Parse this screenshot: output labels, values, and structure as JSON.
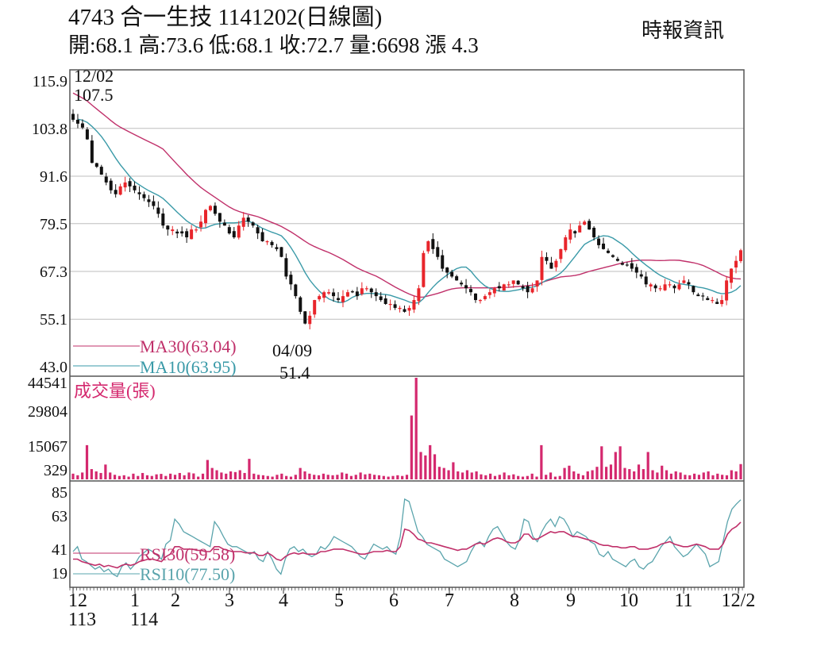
{
  "header": {
    "title": "4743  合一生技 1141202(日線圖)",
    "subtitle": "開:68.1 高:73.6 低:68.1 收:72.7 量:6698 漲 4.3",
    "brand": "時報資訊"
  },
  "colors": {
    "up": "#e8252b",
    "down": "#111111",
    "ma30": "#c0306a",
    "ma10": "#3a9aa8",
    "volume": "#d4286e",
    "rsi30": "#c0306a",
    "rsi10": "#5aa4ac",
    "grid": "#bdbdbd",
    "axis": "#555555"
  },
  "chart_data": [
    {
      "type": "candlestick",
      "title": "4743 合一生技 1141202(日線圖)",
      "panel": "price",
      "ylim": [
        43.0,
        115.9
      ],
      "yticks": [
        115.9,
        103.8,
        91.6,
        79.5,
        67.3,
        55.1,
        43.0
      ],
      "ohlc_last": {
        "open": 68.1,
        "high": 73.6,
        "low": 68.1,
        "close": 72.7,
        "volume": 6698,
        "change": 4.3
      },
      "annotations": [
        {
          "label": "12/02",
          "value": "107.5",
          "note": "period high"
        },
        {
          "label": "04/09",
          "value": "51.4",
          "note": "period low"
        }
      ],
      "series": [
        {
          "name": "MA30",
          "last": 63.04,
          "legend": "MA30(63.04)"
        },
        {
          "name": "MA10",
          "last": 63.95,
          "legend": "MA10(63.95)"
        }
      ],
      "close_path": [
        106,
        105,
        104,
        101,
        95,
        94,
        92,
        90,
        88,
        87,
        89,
        90,
        89,
        88,
        87,
        86,
        85,
        84,
        82,
        79,
        78,
        78,
        77,
        77,
        76,
        78,
        78,
        80,
        83,
        84,
        82,
        80,
        79,
        77,
        76,
        79,
        81,
        80,
        79,
        77,
        75,
        75,
        74,
        73,
        71,
        66,
        64,
        61,
        57,
        54,
        56,
        60,
        61,
        62,
        62,
        61,
        60,
        61,
        62,
        62,
        61,
        63,
        63,
        62,
        61,
        60,
        59,
        59,
        58,
        58,
        57,
        58,
        60,
        63,
        72,
        75,
        73,
        71,
        68,
        67,
        66,
        65,
        64,
        63,
        62,
        60,
        60,
        61,
        62,
        63,
        63,
        64,
        64,
        65,
        64,
        63,
        62,
        63,
        65,
        71,
        70,
        68,
        70,
        73,
        76,
        78,
        77,
        79,
        80,
        78,
        76,
        74,
        73,
        72,
        71,
        70,
        69,
        69,
        68,
        67,
        66,
        64,
        64,
        63,
        63,
        64,
        64,
        63,
        64,
        65,
        64,
        62,
        61,
        61,
        60,
        60,
        59,
        60,
        65,
        68,
        70,
        72.7
      ]
    },
    {
      "type": "bar",
      "panel": "volume",
      "title": "成交量(張)",
      "ylim": [
        0,
        44541
      ],
      "yticks": [
        44541,
        29804,
        15067,
        329
      ],
      "peak_value": 44541,
      "values": [
        2500,
        1800,
        3000,
        15000,
        4500,
        3500,
        2800,
        6500,
        3000,
        2000,
        1500,
        1800,
        1200,
        2500,
        1500,
        2800,
        1800,
        1500,
        2200,
        2400,
        1500,
        2500,
        2000,
        2800,
        1800,
        3000,
        2600,
        1200,
        2500,
        8500,
        5000,
        4000,
        3000,
        2500,
        3500,
        3200,
        4000,
        2800,
        9000,
        2500,
        2000,
        1800,
        1500,
        1200,
        2000,
        2500,
        1500,
        1200,
        2000,
        5000,
        3500,
        2500,
        2000,
        1800,
        2500,
        2000,
        1800,
        2000,
        3000,
        2500,
        1500,
        2000,
        3000,
        2200,
        2500,
        2000,
        1800,
        1500,
        1200,
        1500,
        1800,
        1500,
        2000,
        28000,
        44541,
        12000,
        10500,
        15000,
        11000,
        5500,
        5000,
        4000,
        7500,
        3500,
        3000,
        4000,
        3000,
        3500,
        2200,
        1800,
        2500,
        1500,
        2000,
        3000,
        1800,
        2200,
        1500,
        1200,
        1500,
        2500,
        1200,
        15000,
        2000,
        3000,
        1200,
        1500,
        5000,
        6000,
        3500,
        2500,
        1800,
        3500,
        4000,
        5500,
        14500,
        5500,
        6500,
        12000,
        14500,
        5000,
        4500,
        3500,
        6500,
        4500,
        12000,
        4000,
        3000,
        6000,
        4000,
        2500,
        3500,
        3000,
        2000,
        1800,
        2500,
        2000,
        3000,
        3500,
        1800,
        2500,
        2000,
        1800,
        4000,
        3500,
        6698
      ]
    },
    {
      "type": "line",
      "panel": "rsi",
      "ylim": [
        10,
        90
      ],
      "yticks": [
        85,
        63,
        41,
        19
      ],
      "series": [
        {
          "name": "RSI30",
          "last": 59.58,
          "legend": "RSI30(59.58)"
        },
        {
          "name": "RSI10",
          "last": 77.5,
          "legend": "RSI10(77.50)"
        }
      ]
    }
  ],
  "xaxis": {
    "ticks": [
      {
        "label": "12",
        "sub": "113"
      },
      {
        "label": "1",
        "sub": "114"
      },
      {
        "label": "2"
      },
      {
        "label": "3"
      },
      {
        "label": "4"
      },
      {
        "label": "5"
      },
      {
        "label": "6"
      },
      {
        "label": "7"
      },
      {
        "label": "8"
      },
      {
        "label": "9"
      },
      {
        "label": "10"
      },
      {
        "label": "11"
      },
      {
        "label": "12/2"
      }
    ],
    "tick_x": [
      92,
      170,
      221,
      289,
      357,
      427,
      496,
      566,
      648,
      719,
      792,
      861,
      930
    ]
  },
  "rsi_paths": {
    "rsi10": [
      36,
      40,
      30,
      28,
      25,
      22,
      24,
      20,
      22,
      18,
      16,
      24,
      27,
      22,
      26,
      32,
      35,
      38,
      36,
      33,
      30,
      42,
      45,
      62,
      58,
      52,
      50,
      48,
      46,
      44,
      42,
      40,
      60,
      55,
      48,
      42,
      40,
      40,
      38,
      36,
      34,
      36,
      30,
      28,
      36,
      30,
      22,
      18,
      30,
      38,
      40,
      36,
      38,
      34,
      32,
      34,
      40,
      38,
      42,
      48,
      46,
      44,
      42,
      40,
      36,
      32,
      30,
      36,
      42,
      40,
      38,
      40,
      36,
      34,
      48,
      78,
      76,
      64,
      52,
      48,
      42,
      40,
      38,
      36,
      30,
      28,
      26,
      24,
      26,
      28,
      36,
      42,
      44,
      40,
      48,
      54,
      56,
      50,
      44,
      40,
      38,
      46,
      62,
      60,
      48,
      44,
      52,
      58,
      62,
      56,
      64,
      62,
      56,
      48,
      52,
      50,
      48,
      44,
      42,
      34,
      32,
      36,
      30,
      28,
      26,
      24,
      28,
      30,
      24,
      22,
      26,
      28,
      34,
      40,
      44,
      48,
      40,
      36,
      32,
      34,
      38,
      42,
      38,
      34,
      24,
      26,
      28,
      44,
      60,
      70,
      74,
      77.5
    ],
    "rsi30": [
      30,
      30,
      28,
      27,
      26,
      25,
      26,
      24,
      25,
      24,
      23,
      25,
      26,
      25,
      26,
      28,
      29,
      30,
      30,
      29,
      28,
      32,
      34,
      40,
      40,
      38,
      38,
      38,
      37,
      37,
      36,
      36,
      40,
      40,
      38,
      37,
      36,
      36,
      36,
      35,
      35,
      35,
      33,
      33,
      35,
      33,
      30,
      29,
      32,
      34,
      35,
      34,
      35,
      34,
      34,
      34,
      36,
      36,
      37,
      38,
      38,
      38,
      37,
      36,
      35,
      34,
      34,
      35,
      36,
      36,
      36,
      37,
      36,
      36,
      40,
      54,
      53,
      50,
      46,
      45,
      43,
      43,
      42,
      41,
      40,
      39,
      38,
      37,
      38,
      38,
      40,
      42,
      43,
      42,
      44,
      46,
      47,
      46,
      44,
      43,
      43,
      45,
      50,
      50,
      46,
      46,
      48,
      50,
      52,
      51,
      52,
      52,
      50,
      48,
      48,
      47,
      46,
      45,
      44,
      42,
      41,
      41,
      40,
      40,
      39,
      39,
      40,
      40,
      38,
      38,
      38,
      39,
      40,
      42,
      43,
      44,
      42,
      41,
      40,
      40,
      41,
      42,
      41,
      40,
      38,
      38,
      38,
      42,
      50,
      54,
      56,
      59.58
    ]
  },
  "labels": {
    "ma30": "MA30(63.04)",
    "ma10": "MA10(63.95)",
    "volume_title": "成交量(張)",
    "rsi30": "RSI30(59.58)",
    "rsi10": "RSI10(77.50)",
    "high_date": "12/02",
    "high_value": "107.5",
    "low_date": "04/09",
    "low_value": "51.4",
    "price_ticks": [
      "115.9",
      "103.8",
      "91.6",
      "79.5",
      "67.3",
      "55.1",
      "43.0"
    ],
    "volume_ticks": [
      "44541",
      "29804",
      "15067",
      "329"
    ],
    "rsi_ticks": [
      "85",
      "63",
      "41",
      "19"
    ]
  }
}
